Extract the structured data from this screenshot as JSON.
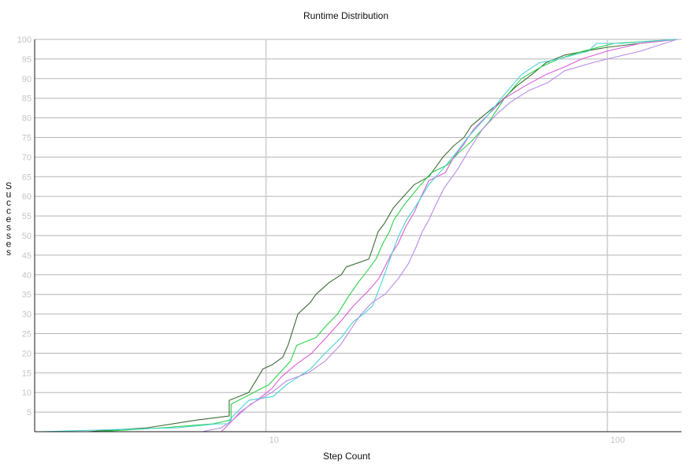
{
  "chart_data": {
    "type": "line",
    "title": "Runtime Distribution",
    "xlabel": "Step Count",
    "ylabel": "Successes",
    "x_scale": "log",
    "xlim": [
      2.1,
      165
    ],
    "ylim": [
      0,
      100
    ],
    "x_ticks": [
      10,
      100
    ],
    "x_tick_labels": [
      "10",
      "100"
    ],
    "y_ticks": [
      5,
      10,
      15,
      20,
      25,
      30,
      35,
      40,
      45,
      50,
      55,
      60,
      65,
      70,
      75,
      80,
      85,
      90,
      95,
      100
    ],
    "y_tick_labels": [
      "5",
      "10",
      "15",
      "20",
      "25",
      "30",
      "35",
      "40",
      "45",
      "50",
      "55",
      "60",
      "65",
      "70",
      "75",
      "80",
      "85",
      "90",
      "95",
      "100"
    ],
    "grid": true,
    "legend": "none",
    "series": [
      {
        "color": "#3d6b35",
        "points": [
          [
            3.0,
            0
          ],
          [
            4.5,
            1
          ],
          [
            6.3,
            3
          ],
          [
            7.8,
            4
          ],
          [
            7.8,
            8
          ],
          [
            8.9,
            10
          ],
          [
            9.8,
            16
          ],
          [
            10.4,
            17
          ],
          [
            11.2,
            19
          ],
          [
            11.6,
            22
          ],
          [
            12.4,
            30
          ],
          [
            13.5,
            33
          ],
          [
            14.0,
            35
          ],
          [
            15.3,
            38
          ],
          [
            16.6,
            40
          ],
          [
            17.2,
            42
          ],
          [
            20.0,
            44
          ],
          [
            20.4,
            46
          ],
          [
            21.3,
            51
          ],
          [
            22.2,
            53
          ],
          [
            23.6,
            57
          ],
          [
            25.3,
            60
          ],
          [
            27.2,
            63
          ],
          [
            30.0,
            65
          ],
          [
            33.0,
            70
          ],
          [
            35.6,
            73
          ],
          [
            38.0,
            75
          ],
          [
            40.0,
            78
          ],
          [
            44.0,
            81
          ],
          [
            48.5,
            84
          ],
          [
            54.0,
            88
          ],
          [
            60.0,
            91
          ],
          [
            66.0,
            94
          ],
          [
            75.0,
            96
          ],
          [
            86.0,
            97
          ],
          [
            100.0,
            98
          ],
          [
            125.0,
            99
          ],
          [
            160.0,
            100
          ]
        ]
      },
      {
        "color": "#2bd14a",
        "points": [
          [
            3.2,
            0
          ],
          [
            5.0,
            1
          ],
          [
            7.0,
            2
          ],
          [
            7.9,
            3
          ],
          [
            7.9,
            7
          ],
          [
            9.2,
            10
          ],
          [
            10.2,
            12
          ],
          [
            11.8,
            18
          ],
          [
            12.3,
            22
          ],
          [
            14.0,
            24
          ],
          [
            15.0,
            27
          ],
          [
            16.2,
            30
          ],
          [
            17.3,
            34
          ],
          [
            18.6,
            38
          ],
          [
            19.8,
            41
          ],
          [
            21.0,
            44
          ],
          [
            22.0,
            48
          ],
          [
            23.0,
            51
          ],
          [
            23.7,
            54
          ],
          [
            25.5,
            58
          ],
          [
            27.8,
            62
          ],
          [
            30.5,
            66
          ],
          [
            34.0,
            68
          ],
          [
            36.6,
            71
          ],
          [
            40.0,
            74
          ],
          [
            45.0,
            79
          ],
          [
            50.0,
            85
          ],
          [
            56.0,
            90
          ],
          [
            64.0,
            93
          ],
          [
            72.0,
            95
          ],
          [
            85.0,
            97
          ],
          [
            105.0,
            99
          ],
          [
            160.0,
            100
          ]
        ]
      },
      {
        "color": "#d95cd9",
        "points": [
          [
            2.5,
            0
          ],
          [
            7.4,
            0
          ],
          [
            7.8,
            2
          ],
          [
            8.4,
            5
          ],
          [
            9.4,
            8
          ],
          [
            10.4,
            11
          ],
          [
            11.1,
            14
          ],
          [
            12.2,
            17
          ],
          [
            13.6,
            20
          ],
          [
            15.0,
            24
          ],
          [
            16.5,
            28
          ],
          [
            18.0,
            32
          ],
          [
            20.0,
            36
          ],
          [
            21.4,
            39
          ],
          [
            22.3,
            42
          ],
          [
            23.2,
            45
          ],
          [
            24.4,
            48
          ],
          [
            25.6,
            52
          ],
          [
            27.2,
            56
          ],
          [
            28.5,
            60
          ],
          [
            30.0,
            64
          ],
          [
            33.5,
            66
          ],
          [
            35.5,
            70
          ],
          [
            37.8,
            73
          ],
          [
            40.5,
            77
          ],
          [
            45.0,
            81
          ],
          [
            50.0,
            85
          ],
          [
            57.0,
            88
          ],
          [
            66.0,
            91
          ],
          [
            75.0,
            93
          ],
          [
            84.0,
            95
          ],
          [
            100.0,
            97
          ],
          [
            125.0,
            99
          ],
          [
            160.0,
            100
          ]
        ]
      },
      {
        "color": "#49d2d2",
        "points": [
          [
            2.2,
            0
          ],
          [
            5.5,
            1
          ],
          [
            7.2,
            2
          ],
          [
            7.8,
            2
          ],
          [
            7.8,
            3
          ],
          [
            8.9,
            8
          ],
          [
            10.5,
            9
          ],
          [
            11.5,
            12
          ],
          [
            13.5,
            16
          ],
          [
            14.9,
            20
          ],
          [
            16.6,
            24
          ],
          [
            18.0,
            28
          ],
          [
            19.3,
            30
          ],
          [
            20.5,
            32
          ],
          [
            21.8,
            38
          ],
          [
            23.3,
            45
          ],
          [
            24.5,
            50
          ],
          [
            25.8,
            54
          ],
          [
            27.7,
            58
          ],
          [
            30.0,
            63
          ],
          [
            33.0,
            67
          ],
          [
            36.0,
            71
          ],
          [
            39.0,
            75
          ],
          [
            44.0,
            80
          ],
          [
            50.0,
            86
          ],
          [
            56.0,
            91
          ],
          [
            63.0,
            94
          ],
          [
            72.0,
            95
          ],
          [
            88.0,
            97
          ],
          [
            93.0,
            99
          ],
          [
            110.0,
            99
          ],
          [
            160.0,
            100
          ]
        ]
      },
      {
        "color": "#b88ae8",
        "points": [
          [
            2.8,
            0
          ],
          [
            6.5,
            0
          ],
          [
            7.4,
            1
          ],
          [
            8.0,
            3
          ],
          [
            9.0,
            7
          ],
          [
            10.4,
            10
          ],
          [
            11.5,
            13
          ],
          [
            13.3,
            15
          ],
          [
            14.9,
            18
          ],
          [
            16.5,
            22
          ],
          [
            18.0,
            27
          ],
          [
            19.0,
            30
          ],
          [
            20.5,
            33
          ],
          [
            22.3,
            35
          ],
          [
            24.4,
            39
          ],
          [
            26.2,
            43
          ],
          [
            27.5,
            47
          ],
          [
            28.7,
            51
          ],
          [
            30.0,
            54
          ],
          [
            31.5,
            58
          ],
          [
            33.2,
            62
          ],
          [
            36.5,
            67
          ],
          [
            39.5,
            72
          ],
          [
            43.0,
            77
          ],
          [
            47.5,
            81
          ],
          [
            52.0,
            84
          ],
          [
            59.0,
            87
          ],
          [
            67.0,
            89
          ],
          [
            75.0,
            92
          ],
          [
            90.0,
            94
          ],
          [
            100.0,
            95
          ],
          [
            125.0,
            97
          ],
          [
            160.0,
            100
          ]
        ]
      }
    ]
  }
}
